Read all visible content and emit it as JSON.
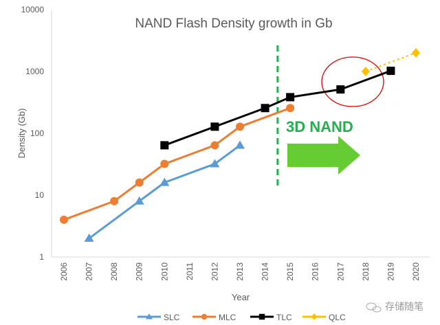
{
  "chart_data": {
    "type": "line",
    "title": "NAND Flash Density growth in Gb",
    "xlabel": "Year",
    "ylabel": "Density (Gb)",
    "yscale": "log",
    "ylim": [
      1,
      10000
    ],
    "yticks": [
      "1",
      "10",
      "100",
      "1000",
      "10000"
    ],
    "xticks": [
      "2006",
      "2007",
      "2008",
      "2009",
      "2010",
      "2011",
      "2012",
      "2013",
      "2014",
      "2015",
      "2016",
      "2017",
      "2018",
      "2019",
      "2020"
    ],
    "series": [
      {
        "name": "SLC",
        "color": "#5b9bd5",
        "marker": "triangle",
        "x": [
          2007,
          2009,
          2010,
          2012,
          2013
        ],
        "values": [
          2,
          8,
          16,
          32,
          64
        ],
        "dashed": false
      },
      {
        "name": "MLC",
        "color": "#ed7d31",
        "marker": "circle",
        "x": [
          2006,
          2008,
          2009,
          2010,
          2012,
          2013,
          2015
        ],
        "values": [
          4,
          8,
          16,
          32,
          64,
          128,
          256
        ],
        "dashed": false
      },
      {
        "name": "TLC",
        "color": "#000000",
        "marker": "square",
        "x": [
          2010,
          2012,
          2014,
          2015,
          2017,
          2019
        ],
        "values": [
          64,
          128,
          256,
          384,
          512,
          1024
        ],
        "dashed": false
      },
      {
        "name": "QLC",
        "color": "#ffc000",
        "marker": "diamond",
        "x": [
          2018,
          2020
        ],
        "values": [
          1000,
          2000
        ],
        "dashed": true
      }
    ],
    "annotations": {
      "label": "3D NAND",
      "divider_year": 2014.5,
      "color": "#22b14c",
      "highlight_color": "#e00000"
    },
    "legend": "bottom",
    "grid": false
  },
  "watermark": "存储随笔"
}
